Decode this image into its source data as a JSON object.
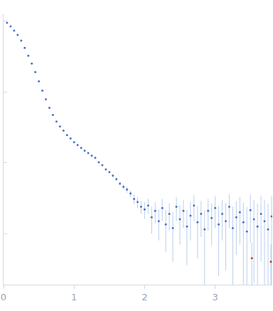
{
  "chart_data": {
    "type": "scatter",
    "log": "y",
    "grid": false,
    "tick_labels": "x",
    "marker": "circle",
    "xlim": [
      0,
      3.81
    ],
    "xticks": [
      0,
      1,
      2,
      3
    ],
    "ylim": [
      0.0019,
      12.6
    ],
    "yticks": [
      0.01,
      0.1,
      1,
      10
    ],
    "series": [
      {
        "color": "#4a72c4",
        "x": [
          0.05,
          0.1,
          0.15,
          0.2,
          0.25,
          0.3,
          0.35,
          0.4,
          0.45,
          0.5,
          0.55,
          0.6,
          0.65,
          0.7,
          0.75,
          0.8,
          0.85,
          0.9,
          0.95,
          1.0,
          1.05,
          1.1,
          1.15,
          1.2,
          1.25,
          1.3,
          1.35,
          1.4,
          1.45,
          1.5,
          1.55,
          1.6,
          1.65,
          1.7,
          1.75,
          1.8,
          1.85,
          1.9,
          1.95,
          2.0,
          2.05,
          2.1,
          2.15,
          2.2,
          2.25,
          2.3,
          2.35,
          2.4,
          2.45,
          2.5,
          2.55,
          2.6,
          2.65,
          2.7,
          2.75,
          2.8,
          2.85,
          2.9,
          2.95,
          3.0,
          3.05,
          3.1,
          3.15,
          3.2,
          3.25,
          3.3,
          3.35,
          3.4,
          3.45,
          3.5,
          3.55,
          3.6,
          3.65,
          3.7,
          3.75,
          3.8
        ],
        "values": [
          9.55,
          8.5,
          7.39,
          6.43,
          5.34,
          4.23,
          3.27,
          2.54,
          1.92,
          1.42,
          1.05,
          0.79,
          0.6,
          0.475,
          0.385,
          0.327,
          0.285,
          0.248,
          0.221,
          0.196,
          0.179,
          0.163,
          0.149,
          0.138,
          0.126,
          0.118,
          0.102,
          0.093,
          0.081,
          0.074,
          0.066,
          0.059,
          0.051,
          0.046,
          0.042,
          0.037,
          0.031,
          0.028,
          0.024,
          0.022,
          0.025,
          0.017,
          0.021,
          0.015,
          0.023,
          0.0135,
          0.019,
          0.012,
          0.024,
          0.016,
          0.021,
          0.0126,
          0.018,
          0.025,
          0.0145,
          0.019,
          0.0115,
          0.021,
          0.0167,
          0.023,
          0.0135,
          0.019,
          0.015,
          0.024,
          0.012,
          0.017,
          0.02,
          0.0145,
          0.0107,
          0.0215,
          0.016,
          0.0126,
          0.019,
          0.015,
          0.0115,
          0.0175
        ],
        "errors": [
          0.1,
          0.08,
          0.07,
          0.06,
          0.05,
          0.04,
          0.03,
          0.03,
          0.02,
          0.015,
          0.01,
          0.008,
          0.006,
          0.005,
          0.004,
          0.003,
          0.003,
          0.003,
          0.002,
          0.002,
          0.002,
          0.002,
          0.002,
          0.002,
          0.002,
          0.002,
          0.002,
          0.002,
          0.002,
          0.002,
          0.003,
          0.003,
          0.003,
          0.004,
          0.004,
          0.004,
          0.005,
          0.005,
          0.005,
          0.006,
          0.006,
          0.007,
          0.007,
          0.007,
          0.008,
          0.008,
          0.008,
          0.008,
          0.009,
          0.009,
          0.009,
          0.009,
          0.01,
          0.01,
          0.01,
          0.01,
          0.01,
          0.01,
          0.01,
          0.011,
          0.011,
          0.011,
          0.012,
          0.012,
          0.012,
          0.012,
          0.013,
          0.013,
          0.013,
          0.014,
          0.014,
          0.014,
          0.015,
          0.015,
          0.015,
          0.016
        ]
      },
      {
        "color": "#d62728",
        "x": [
          3.52,
          3.79
        ],
        "values": [
          0.0045,
          0.004
        ],
        "errors": [
          0.003,
          0.003
        ]
      }
    ]
  }
}
